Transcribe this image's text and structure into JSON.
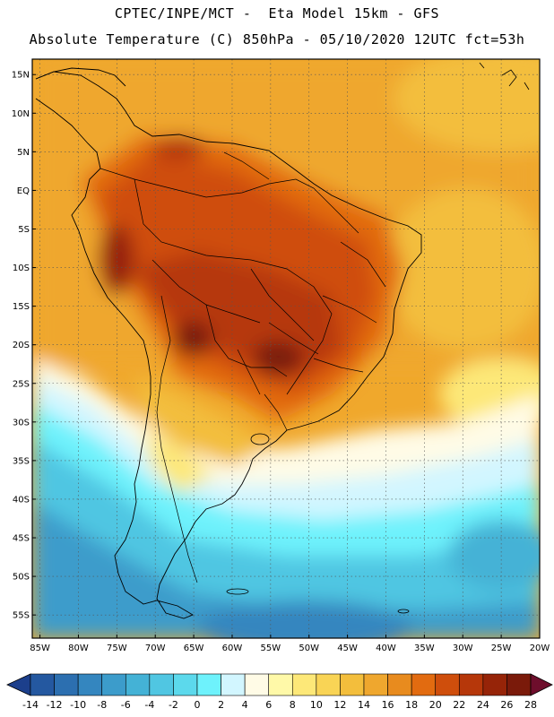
{
  "header": {
    "line1": "CPTEC/INPE/MCT -  Eta Model 15km - GFS",
    "line2": "Absolute Temperature (C) 850hPa - 05/10/2020 12UTC fct=53h"
  },
  "map": {
    "lat_labels": [
      "15N",
      "10N",
      "5N",
      "EQ",
      "5S",
      "10S",
      "15S",
      "20S",
      "25S",
      "30S",
      "35S",
      "40S",
      "45S",
      "50S",
      "55S"
    ],
    "lat_values": [
      15,
      10,
      5,
      0,
      -5,
      -10,
      -15,
      -20,
      -25,
      -30,
      -35,
      -40,
      -45,
      -50,
      -55
    ],
    "lon_labels": [
      "85W",
      "80W",
      "75W",
      "70W",
      "65W",
      "60W",
      "55W",
      "50W",
      "45W",
      "40W",
      "35W",
      "30W",
      "25W",
      "20W"
    ],
    "lon_values": [
      -85,
      -80,
      -75,
      -70,
      -65,
      -60,
      -55,
      -50,
      -45,
      -40,
      -35,
      -30,
      -25,
      -20
    ],
    "lat_range": [
      -58,
      17
    ],
    "lon_range": [
      -86,
      -20
    ],
    "grid": "dotted"
  },
  "colorbar": {
    "labels": [
      "-14",
      "-12",
      "-10",
      "-8",
      "-6",
      "-4",
      "-2",
      "0",
      "2",
      "4",
      "6",
      "8",
      "10",
      "12",
      "14",
      "16",
      "18",
      "20",
      "22",
      "24",
      "26",
      "28"
    ],
    "colors": [
      "#1c3f8c",
      "#2458a0",
      "#2c6fb0",
      "#3486bf",
      "#3c9ccb",
      "#44b2d6",
      "#50c6e2",
      "#5cd9ec",
      "#6ef2fc",
      "#d2f6ff",
      "#fffbe6",
      "#fff9a8",
      "#fde878",
      "#f9d455",
      "#f3be3c",
      "#efa72e",
      "#e88b1e",
      "#e26b10",
      "#cf4e0c",
      "#b6370a",
      "#962408",
      "#7a1a0a",
      "#6e0e2c"
    ]
  }
}
